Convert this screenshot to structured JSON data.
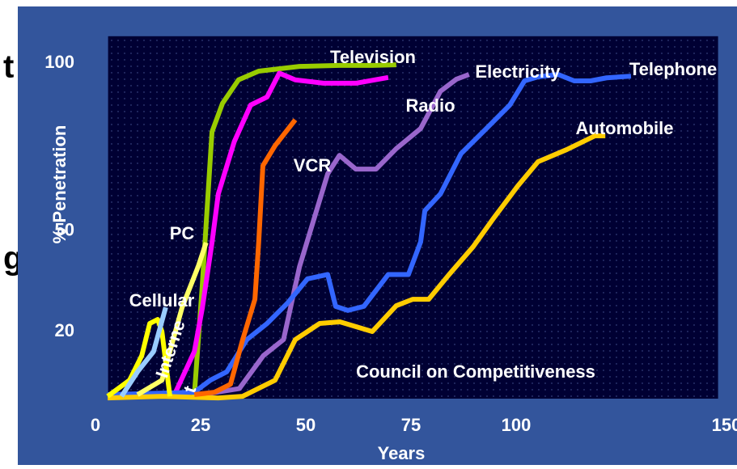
{
  "slide_fragments": [
    "t",
    "g"
  ],
  "chart_data": {
    "type": "line",
    "xlabel": "Years",
    "ylabel": "% Penetration",
    "annotation": "Council on Competitiveness",
    "xlim": [
      3,
      148
    ],
    "ylim": [
      0,
      108
    ],
    "xticks": [
      0,
      25,
      50,
      75,
      100,
      150
    ],
    "yticks": [
      20,
      50,
      100
    ],
    "grid": true,
    "series": [
      {
        "name": "Television",
        "color": "#99cc00",
        "x": [
          23.5,
          25.4,
          27.7,
          30.2,
          34,
          38.8,
          48.5,
          58,
          65.8,
          71.5
        ],
        "values": [
          1,
          34,
          79.5,
          88,
          95,
          97.6,
          99,
          99.3,
          99.3,
          99.5
        ]
      },
      {
        "name": "Radio",
        "color": "#ff00ff",
        "x": [
          18.7,
          23.5,
          25.4,
          27.7,
          29.2,
          33,
          36.9,
          40.8,
          43.7,
          47.5,
          54.2,
          61.9,
          69.6
        ],
        "values": [
          1,
          14,
          27,
          46.5,
          61,
          76.6,
          87.5,
          89.9,
          97,
          95,
          94,
          94,
          95.7
        ]
      },
      {
        "name": "Electricity",
        "color": "#9966cc",
        "x": [
          25.4,
          34.2,
          39.9,
          44.7,
          48.5,
          52.3,
          55.2,
          58,
          61.9,
          66.7,
          71.5,
          77.3,
          82,
          85.8,
          88.8
        ],
        "values": [
          1.2,
          3,
          12.8,
          17.6,
          39.3,
          55,
          67,
          72.5,
          68.4,
          68.4,
          74.5,
          80.5,
          91.6,
          95.2,
          96.6
        ]
      },
      {
        "name": "Telephone",
        "color": "#3366ff",
        "x": [
          2.9,
          23.5,
          27.3,
          31.2,
          36,
          40.8,
          45.6,
          50.4,
          55.2,
          57.1,
          60,
          63.8,
          69.6,
          74.4,
          77.3,
          78.3,
          82,
          86.9,
          92.7,
          98.5,
          102,
          105.2,
          110,
          113.8,
          117.7,
          121.5,
          127.3
        ],
        "values": [
          1.2,
          1.9,
          5.5,
          8,
          17.6,
          22.4,
          28.4,
          35.7,
          37,
          27.5,
          26.3,
          27.5,
          37,
          37,
          46.7,
          56,
          61,
          73,
          80.2,
          87.5,
          94.7,
          95.9,
          96.6,
          94.7,
          94.7,
          95.6,
          96.1
        ]
      },
      {
        "name": "Automobile",
        "color": "#ffcc00",
        "x": [
          2.9,
          15.8,
          29.2,
          35,
          42.7,
          47.5,
          53.3,
          58.1,
          65.8,
          71.5,
          75.4,
          79.2,
          84,
          89.8,
          94.6,
          100.4,
          105.2,
          112,
          118.7,
          121.2
        ],
        "values": [
          0.2,
          0.7,
          0.2,
          0.7,
          5.5,
          17.6,
          22.4,
          22.9,
          20,
          27.7,
          29.6,
          29.6,
          36.9,
          45.3,
          53.7,
          63.4,
          70.6,
          74.2,
          78.3,
          78.3
        ]
      },
      {
        "name": "VCR",
        "color": "#ff6600",
        "x": [
          23.5,
          28.3,
          32.1,
          35,
          37.9,
          38.8,
          39.8,
          42.7,
          47.5
        ],
        "values": [
          1.2,
          1.9,
          4.3,
          17.6,
          29.6,
          46.5,
          69.4,
          75.4,
          83.1
        ]
      },
      {
        "name": "PC",
        "color": "#ffff66",
        "x": [
          10,
          15.8,
          20.6,
          24.4,
          26.3
        ],
        "values": [
          1.2,
          5.5,
          27.2,
          39.3,
          46.5
        ]
      },
      {
        "name": "Cellular",
        "color": "#ffff00",
        "x": [
          2.9,
          8.1,
          11,
          12.9,
          14.8,
          15.8,
          17.7
        ],
        "values": [
          0.7,
          5.5,
          12.8,
          22.4,
          23.6,
          20,
          0.7
        ]
      },
      {
        "name": "Interne",
        "color": "#99ccff",
        "x": [
          6.2,
          10,
          13.8,
          16.7
        ],
        "values": [
          0.7,
          8,
          14,
          27.2
        ]
      }
    ],
    "extra_label": "t"
  }
}
